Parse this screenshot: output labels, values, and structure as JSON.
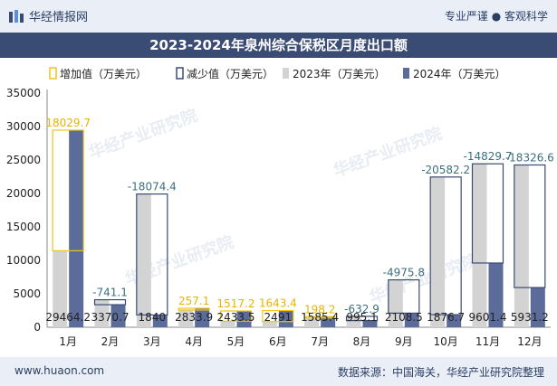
{
  "header": {
    "brand": "华经情报网",
    "tagline": "专业严谨 ● 客观科学"
  },
  "title": "2023-2024年泉州综合保税区月度出口额",
  "footer": {
    "url": "www.huaon.com",
    "source": "数据来源：中国海关，华经产业研究院整理"
  },
  "colors": {
    "y2023": "#d3d3d3",
    "y2024": "#5b6b9a",
    "increase": "#f0c419",
    "decrease": "#3b4c74",
    "decrease_label": "#3b6f7f",
    "increase_label": "#e8b400"
  },
  "chart_data": {
    "type": "bar",
    "title": "2023-2024年泉州综合保税区月度出口额",
    "categories": [
      "1月",
      "2月",
      "3月",
      "4月",
      "5月",
      "6月",
      "7月",
      "8月",
      "9月",
      "10月",
      "11月",
      "12月"
    ],
    "series": [
      {
        "name": "2023年（万美元）",
        "values": [
          11434.5,
          4111.8,
          19914.4,
          2576.8,
          916.3,
          847.6,
          1387.2,
          1628.0,
          7084.3,
          22458.9,
          24431.1,
          24257.8
        ]
      },
      {
        "name": "2024年（万美元）",
        "values": [
          29464.2,
          3370.7,
          1840,
          2833.9,
          2433.5,
          2491,
          1585.4,
          995.1,
          2108.5,
          1876.7,
          9601.4,
          5931.2
        ]
      }
    ],
    "changes": [
      18029.7,
      -741.1,
      -18074.4,
      257.1,
      1517.2,
      1643.4,
      198.2,
      -632.9,
      -4975.8,
      -20582.2,
      -14829.7,
      -18326.6
    ],
    "change_labels": [
      "18029.7",
      "-741.1",
      "-18074.4",
      "257.1",
      "1517.2",
      "1643.4",
      "198.2",
      "-632.9",
      "-4975.8",
      "-20582.2",
      "-14829.7",
      "-18326.6"
    ],
    "value_labels_2024": [
      "29464.2",
      "3370.7",
      "1840",
      "2833.9",
      "2433.5",
      "2491",
      "1585.4",
      "995.1",
      "2108.5",
      "1876.7",
      "9601.4",
      "5931.2"
    ],
    "legend": [
      "增加值（万美元）",
      "减少值（万美元）",
      "2023年（万美元）",
      "2024年（万美元）"
    ],
    "legend_position": "top",
    "ylim": [
      0,
      35000
    ],
    "yticks": [
      0,
      5000,
      10000,
      15000,
      20000,
      25000,
      30000,
      35000
    ],
    "ytick_labels": [
      "0",
      "5000",
      "10000",
      "15000",
      "20000",
      "25000",
      "30000",
      "35000"
    ],
    "watermark": "华经产业研究院"
  }
}
